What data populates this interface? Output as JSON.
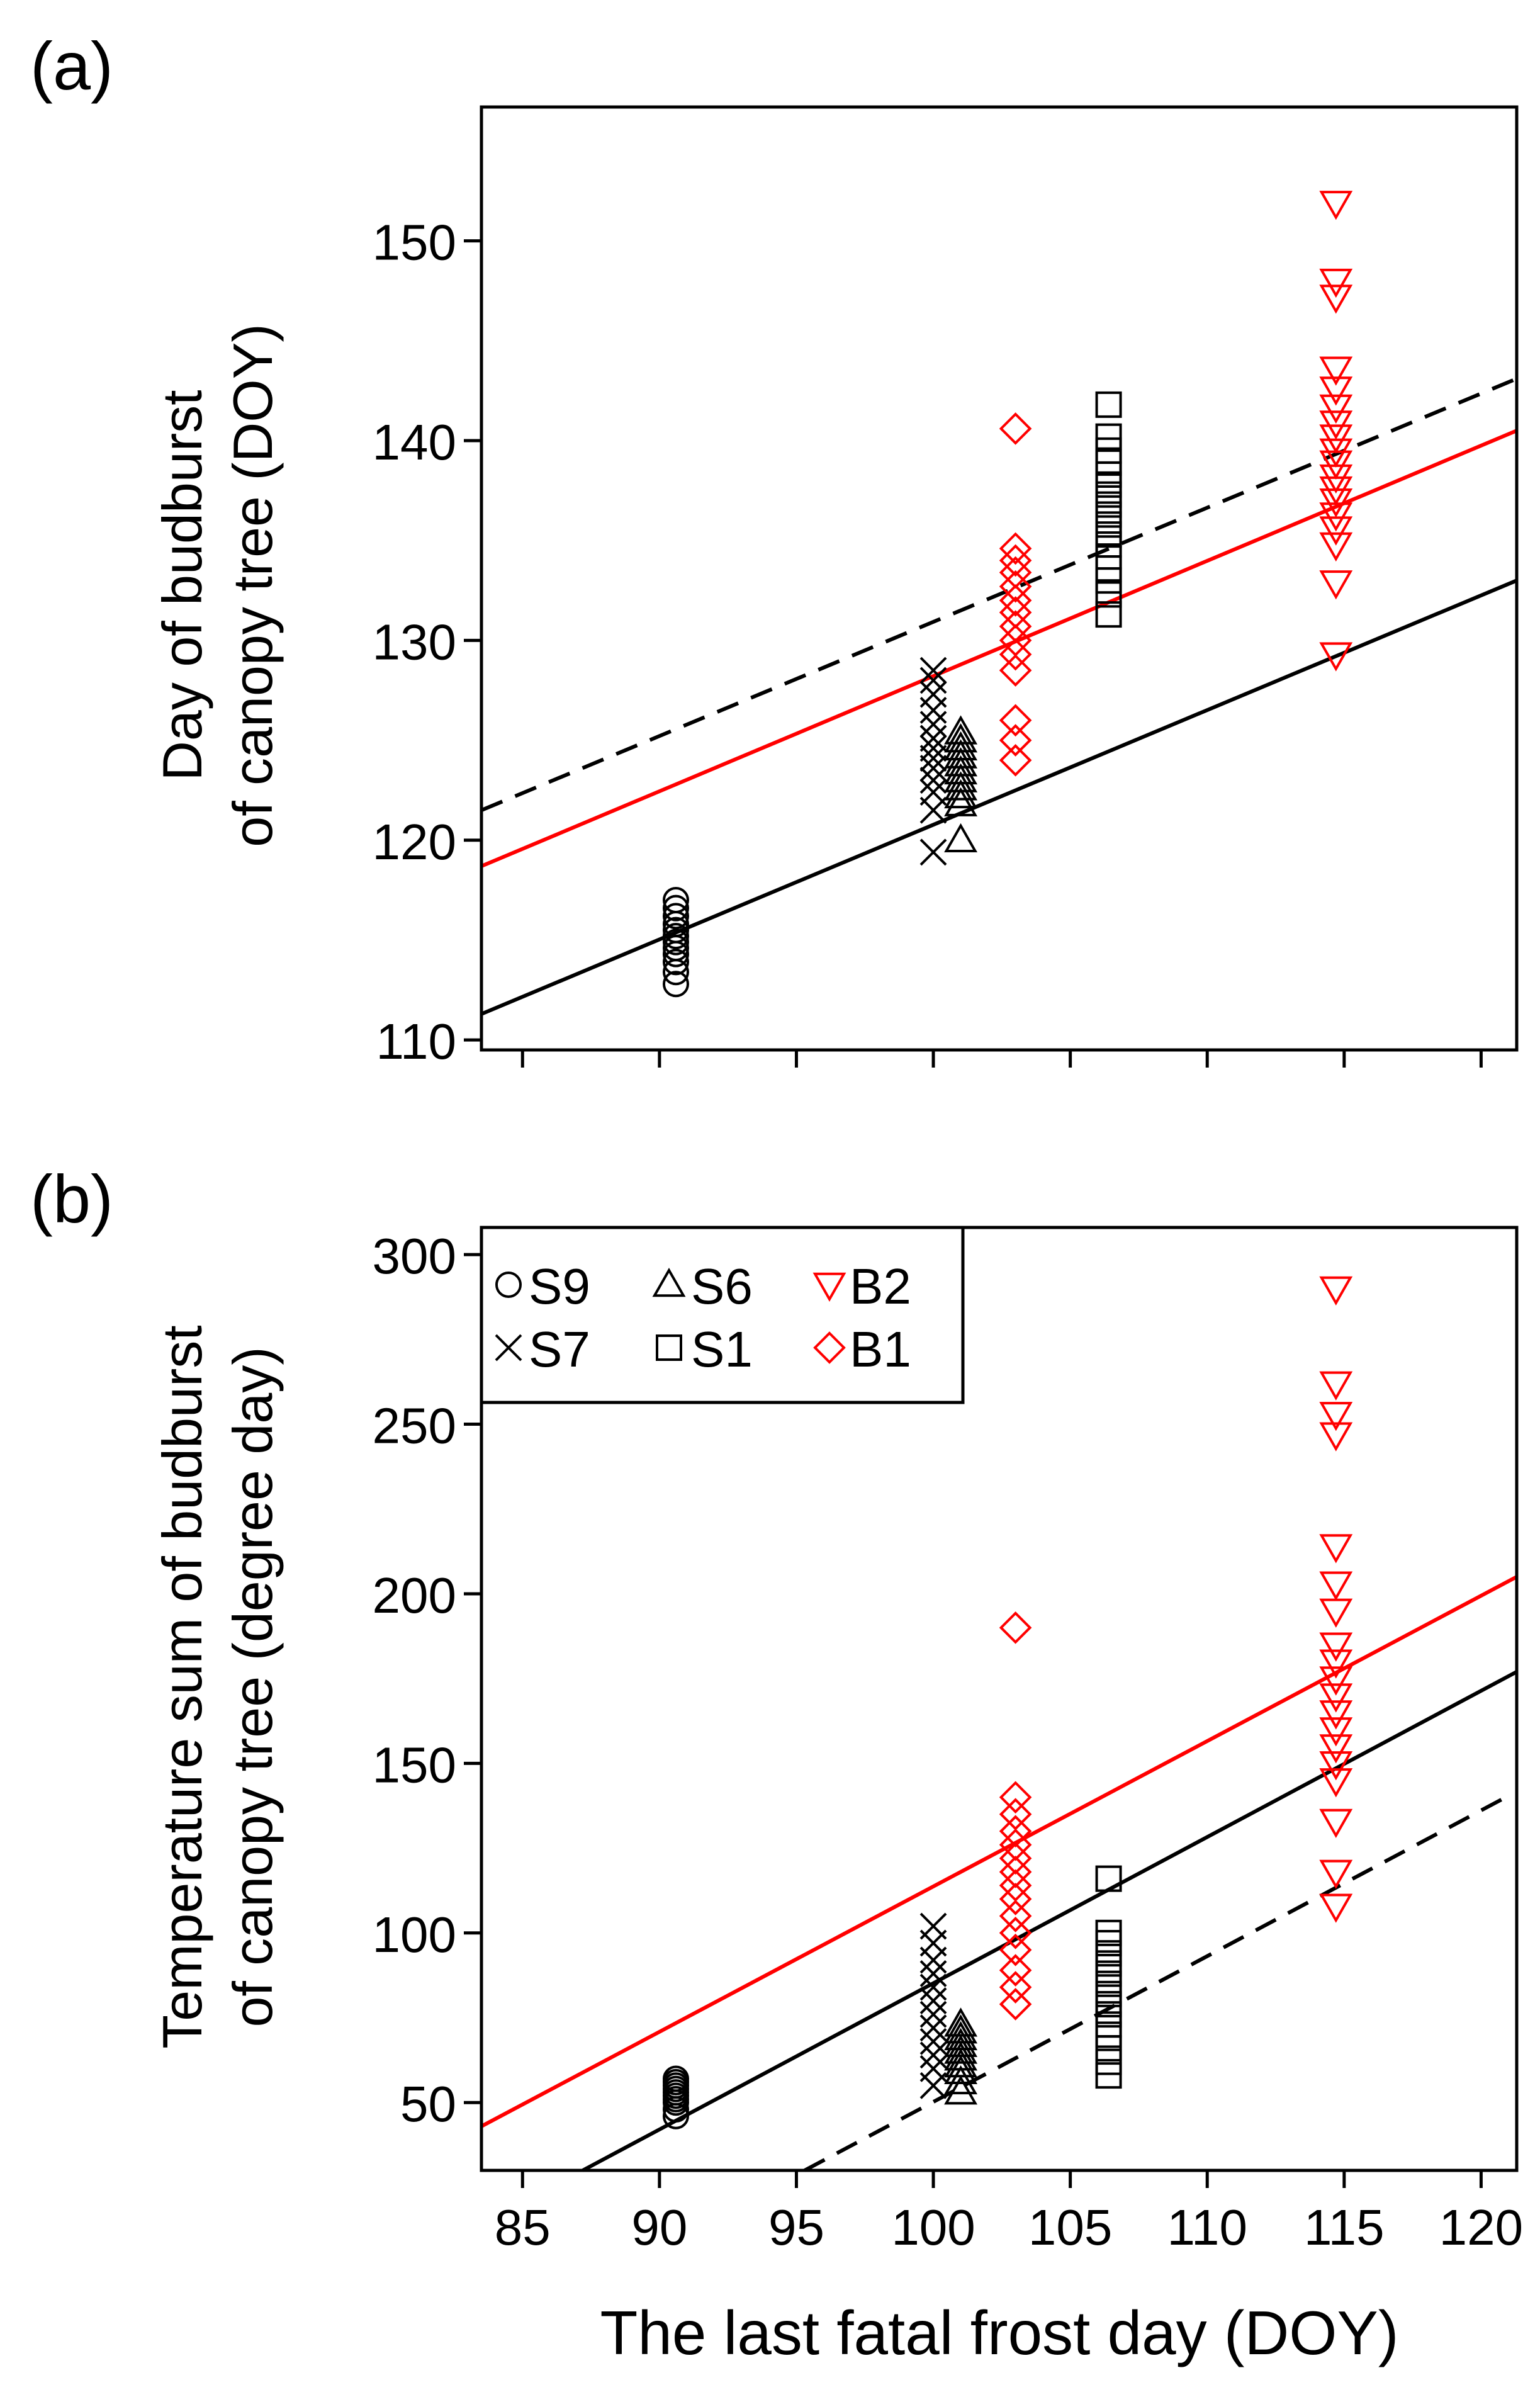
{
  "figure": {
    "xlabel": "The last fatal frost day (DOY)"
  },
  "chart_data": [
    {
      "panel": "(a)",
      "type": "scatter",
      "ylabel_lines": [
        "Day of budburst",
        "of canopy tree (DOY)"
      ],
      "xlim": [
        83.5,
        121.3
      ],
      "ylim": [
        109.5,
        156.7
      ],
      "xticks": [
        85,
        90,
        95,
        100,
        105,
        110,
        115,
        120
      ],
      "show_xtick_labels": false,
      "yticks": [
        110,
        120,
        130,
        140,
        150
      ],
      "series": [
        {
          "name": "S9",
          "marker": "circle",
          "color": "#000000",
          "x": 90.6,
          "values": [
            112.8,
            113.4,
            113.9,
            114.3,
            114.6,
            114.9,
            115.2,
            115.5,
            115.8,
            116.2,
            116.6,
            117.0
          ]
        },
        {
          "name": "S7",
          "marker": "x",
          "color": "#000000",
          "x": 100.0,
          "values": [
            119.4,
            121.5,
            122.4,
            123.0,
            123.6,
            124.1,
            124.6,
            125.1,
            125.8,
            126.5,
            127.3,
            128.0,
            128.5
          ]
        },
        {
          "name": "S6",
          "marker": "triangle-up",
          "color": "#000000",
          "x": 101.0,
          "values": [
            120.0,
            121.8,
            122.2,
            122.6,
            123.0,
            123.4,
            123.8,
            124.2,
            124.6,
            125.0,
            125.4
          ]
        },
        {
          "name": "S1",
          "marker": "square",
          "color": "#000000",
          "x": 106.4,
          "values": [
            131.3,
            132.3,
            133.0,
            133.6,
            134.2,
            134.8,
            135.3,
            135.8,
            136.3,
            136.8,
            137.3,
            137.8,
            138.3,
            138.9,
            139.5,
            140.2,
            141.8
          ]
        },
        {
          "name": "B1",
          "marker": "diamond",
          "color": "#ff0000",
          "x": 103.0,
          "values": [
            124.0,
            125.0,
            126.0,
            128.5,
            129.3,
            130.0,
            130.7,
            131.4,
            132.0,
            132.7,
            133.4,
            134.0,
            134.6,
            140.6
          ]
        },
        {
          "name": "B2",
          "marker": "triangle-down",
          "color": "#ff0000",
          "x": 114.7,
          "values": [
            129.3,
            132.9,
            134.8,
            135.6,
            136.3,
            137.0,
            137.6,
            138.2,
            138.9,
            139.5,
            140.2,
            140.9,
            141.7,
            142.6,
            143.6,
            147.2,
            148.0,
            151.9
          ]
        }
      ],
      "lines": [
        {
          "name": "black-fit",
          "color": "#000000",
          "dash": "solid",
          "x": [
            83.5,
            121.3
          ],
          "y": [
            111.3,
            133.0
          ]
        },
        {
          "name": "red-fit",
          "color": "#ff0000",
          "dash": "solid",
          "x": [
            83.5,
            121.3
          ],
          "y": [
            118.7,
            140.5
          ]
        },
        {
          "name": "dashed-fit",
          "color": "#000000",
          "dash": "dashed",
          "x": [
            83.5,
            121.3
          ],
          "y": [
            121.5,
            143.1
          ]
        }
      ]
    },
    {
      "panel": "(b)",
      "type": "scatter",
      "ylabel_lines": [
        "Temperature sum of budburst",
        "of canopy tree (degree day)"
      ],
      "xlim": [
        83.5,
        121.3
      ],
      "ylim": [
        30,
        308
      ],
      "xticks": [
        85,
        90,
        95,
        100,
        105,
        110,
        115,
        120
      ],
      "show_xtick_labels": true,
      "yticks": [
        50,
        100,
        150,
        200,
        250,
        300
      ],
      "legend": {
        "position": "top-left",
        "entries": [
          {
            "label": "S9",
            "marker": "circle",
            "color": "#000000"
          },
          {
            "label": "S7",
            "marker": "x",
            "color": "#000000"
          },
          {
            "label": "S6",
            "marker": "triangle-up",
            "color": "#000000"
          },
          {
            "label": "S1",
            "marker": "square",
            "color": "#000000"
          },
          {
            "label": "B2",
            "marker": "triangle-down",
            "color": "#ff0000"
          },
          {
            "label": "B1",
            "marker": "diamond",
            "color": "#ff0000"
          }
        ]
      },
      "series": [
        {
          "name": "S9",
          "marker": "circle",
          "color": "#000000",
          "x": 90.6,
          "values": [
            46,
            48,
            50,
            51,
            52,
            53,
            54,
            55,
            56,
            57
          ]
        },
        {
          "name": "S7",
          "marker": "x",
          "color": "#000000",
          "x": 100.0,
          "values": [
            55,
            60,
            64,
            68,
            72,
            76,
            80,
            84,
            88,
            92,
            97,
            102
          ]
        },
        {
          "name": "S6",
          "marker": "triangle-up",
          "color": "#000000",
          "x": 101.0,
          "values": [
            53,
            56,
            59,
            61,
            63,
            65,
            67,
            69,
            71,
            73
          ]
        },
        {
          "name": "S1",
          "marker": "square",
          "color": "#000000",
          "x": 106.4,
          "values": [
            58,
            62,
            66,
            70,
            73,
            76,
            79,
            82,
            85,
            88,
            91,
            94,
            97,
            100,
            116
          ]
        },
        {
          "name": "B1",
          "marker": "diamond",
          "color": "#ff0000",
          "x": 103.0,
          "values": [
            79,
            84,
            89,
            95,
            100,
            105,
            110,
            114,
            118,
            122,
            126,
            130,
            135,
            140,
            190
          ]
        },
        {
          "name": "B2",
          "marker": "triangle-down",
          "color": "#ff0000",
          "x": 114.7,
          "values": [
            108,
            118,
            133,
            145,
            150,
            155,
            160,
            165,
            170,
            175,
            180,
            185,
            195,
            203,
            214,
            247,
            253,
            262,
            290
          ]
        }
      ],
      "lines": [
        {
          "name": "black-fit",
          "color": "#000000",
          "dash": "solid",
          "x": [
            87.2,
            121.3
          ],
          "y": [
            30,
            177
          ]
        },
        {
          "name": "red-fit",
          "color": "#ff0000",
          "dash": "solid",
          "x": [
            83.5,
            121.3
          ],
          "y": [
            43,
            205
          ]
        },
        {
          "name": "dashed-fit",
          "color": "#000000",
          "dash": "dashed",
          "x": [
            95.3,
            120.9
          ],
          "y": [
            30,
            140
          ]
        }
      ]
    }
  ]
}
